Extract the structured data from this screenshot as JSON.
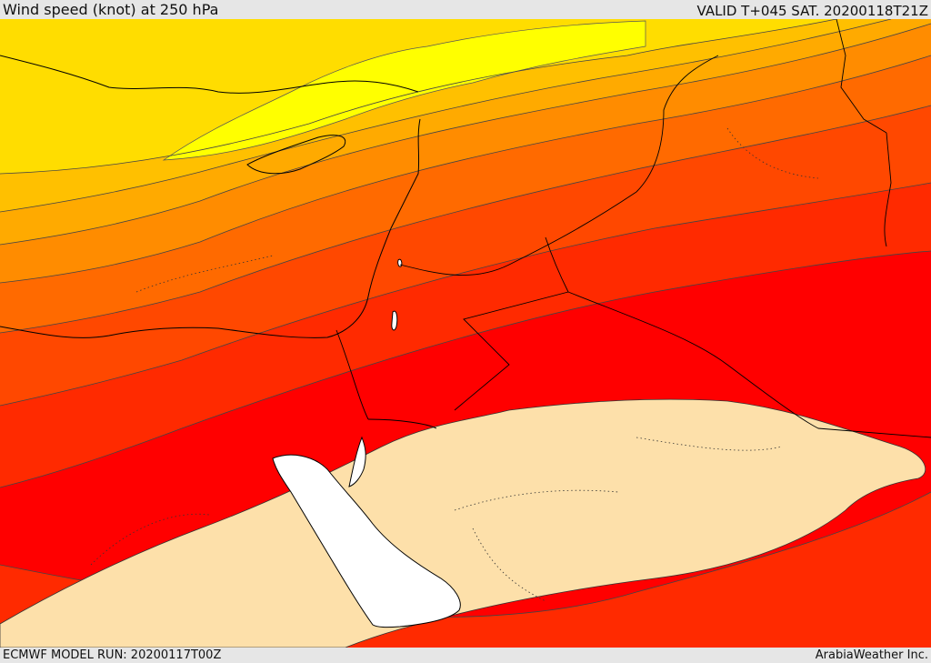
{
  "header": {
    "title": "Wind speed (knot) at 250 hPa",
    "valid_time": "VALID T+045 SAT. 20200118T21Z"
  },
  "footer": {
    "model_run": "ECMWF MODEL RUN: 20200117T00Z",
    "credit": "ArabiaWeather Inc."
  },
  "map": {
    "variable": "wind-speed-250hPa",
    "colors": {
      "light_yellow": "#ffff00",
      "yellow": "#ffdd00",
      "gold": "#ffc000",
      "light_orange": "#ffaa00",
      "orange": "#ff8c00",
      "dark_orange": "#ff6a00",
      "orange_red": "#ff4800",
      "red_orange": "#ff2a00",
      "red": "#ff0000",
      "jet_core": "#fde0aa",
      "sea": "#ffffff"
    }
  }
}
